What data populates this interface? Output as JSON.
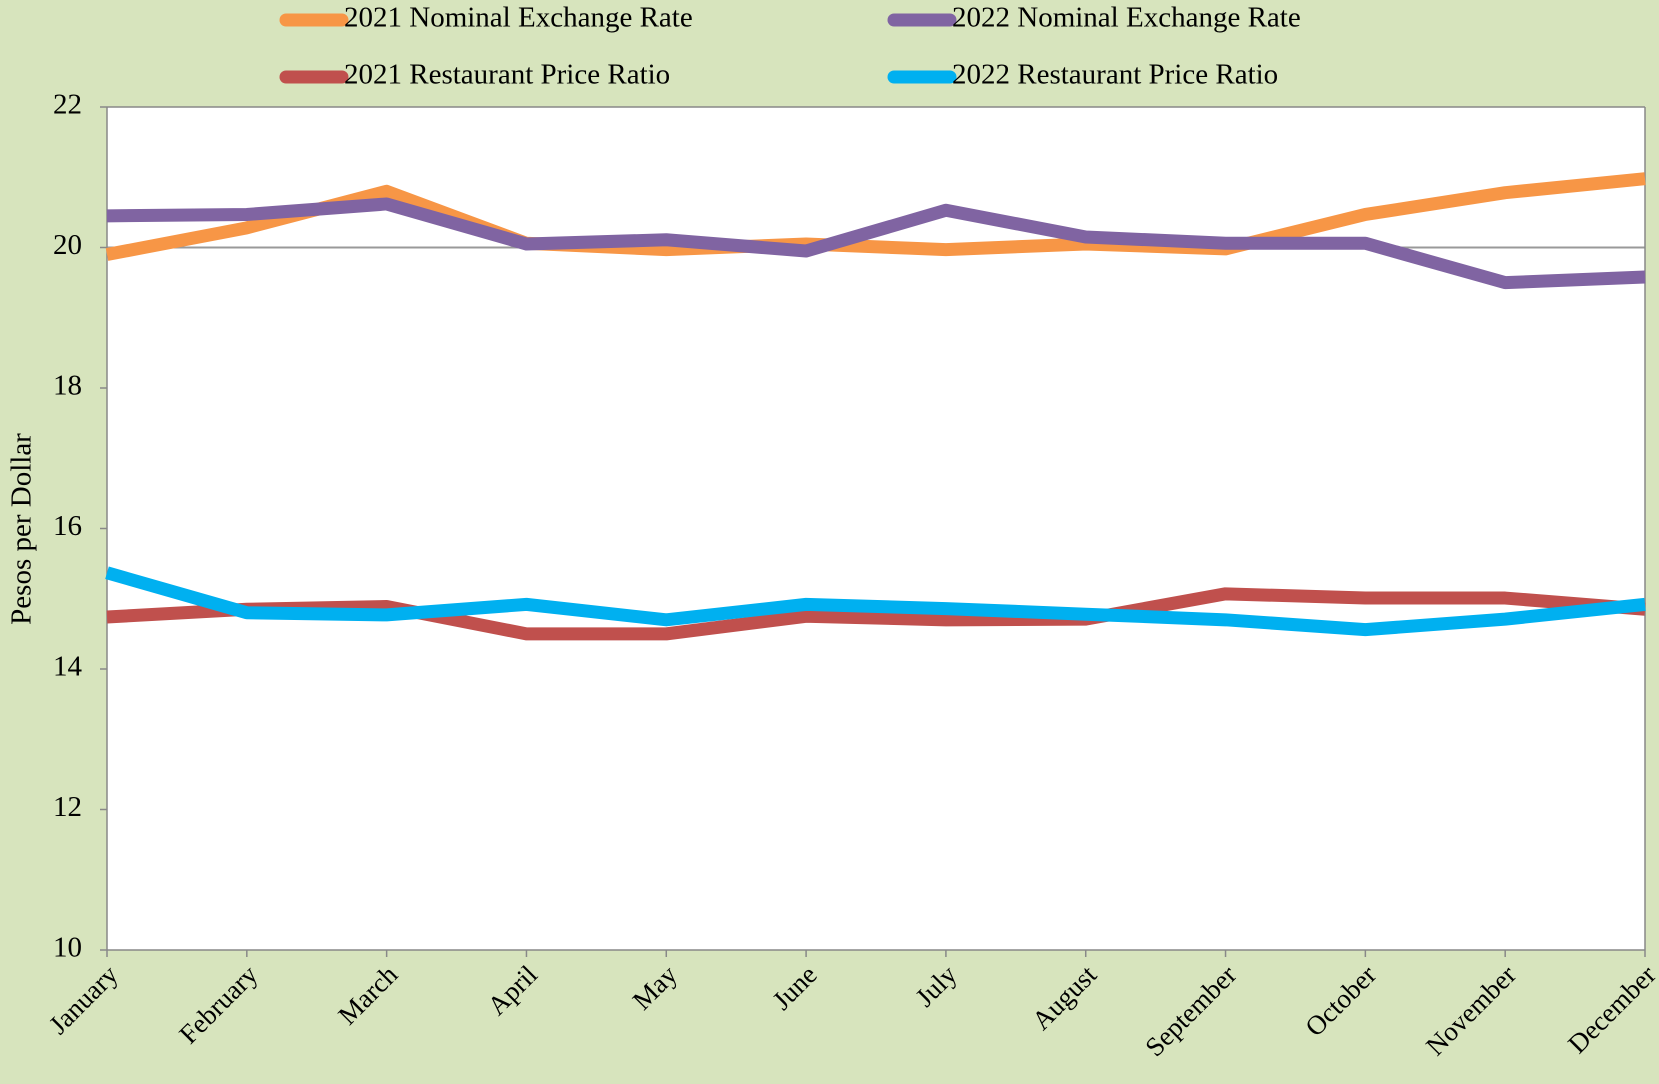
{
  "chart_data": {
    "type": "line",
    "y_axis_label": "Pesos per Dollar",
    "categories": [
      "January",
      "February",
      "March",
      "April",
      "May",
      "June",
      "July",
      "August",
      "September",
      "October",
      "November",
      "December"
    ],
    "series": [
      {
        "name": "2021 Nominal Exchange Rate",
        "color": "#f79646",
        "values": [
          19.9,
          20.28,
          20.8,
          20.06,
          19.97,
          20.05,
          19.97,
          20.05,
          19.98,
          20.47,
          20.78,
          20.98
        ]
      },
      {
        "name": "2022 Nominal Exchange Rate",
        "color": "#8064a2",
        "values": [
          20.45,
          20.47,
          20.62,
          20.05,
          20.11,
          19.95,
          20.53,
          20.15,
          20.06,
          20.06,
          19.5,
          19.58
        ]
      },
      {
        "name": "2021 Restaurant Price Ratio",
        "color": "#c0504d",
        "values": [
          14.74,
          14.85,
          14.89,
          14.5,
          14.5,
          14.75,
          14.7,
          14.71,
          15.07,
          15.01,
          15.01,
          14.85
        ]
      },
      {
        "name": "2022 Restaurant Price Ratio",
        "color": "#00b0f0",
        "values": [
          15.37,
          14.8,
          14.77,
          14.92,
          14.7,
          14.92,
          14.86,
          14.78,
          14.7,
          14.56,
          14.71,
          14.92
        ]
      }
    ],
    "ylim": [
      10,
      22
    ],
    "yticks": [
      10,
      12,
      14,
      16,
      18,
      20,
      22
    ],
    "reference_line": 20,
    "legend": "top"
  }
}
